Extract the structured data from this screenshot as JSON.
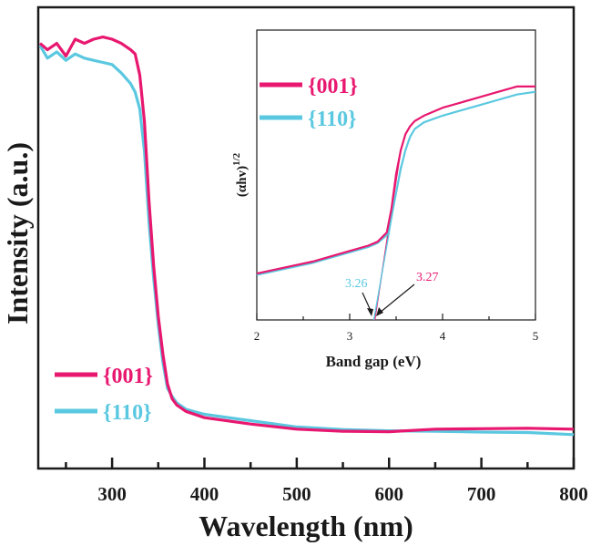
{
  "colors": {
    "s001": "#e8176f",
    "s110": "#5ac8e0",
    "axis": "#1a1a1a"
  },
  "chart_data": [
    {
      "type": "line",
      "title": "",
      "xlabel": "Wavelength (nm)",
      "ylabel": "Intensity (a.u.)",
      "xlim": [
        220,
        800
      ],
      "ylim": [
        0,
        1
      ],
      "xticks": [
        300,
        400,
        500,
        600,
        700,
        800
      ],
      "grid": false,
      "legend_position": "bottom-left",
      "series": [
        {
          "name": "{001}",
          "color": "#e8176f",
          "x": [
            222,
            230,
            240,
            250,
            260,
            270,
            280,
            290,
            300,
            310,
            320,
            325,
            330,
            335,
            340,
            345,
            350,
            355,
            360,
            365,
            370,
            380,
            400,
            450,
            500,
            550,
            600,
            650,
            700,
            750,
            800
          ],
          "y": [
            0.975,
            0.96,
            0.975,
            0.945,
            0.985,
            0.975,
            0.985,
            0.99,
            0.985,
            0.975,
            0.96,
            0.95,
            0.9,
            0.79,
            0.6,
            0.45,
            0.33,
            0.24,
            0.17,
            0.135,
            0.12,
            0.105,
            0.09,
            0.075,
            0.063,
            0.058,
            0.057,
            0.063,
            0.064,
            0.065,
            0.063
          ]
        },
        {
          "name": "{110}",
          "color": "#5ac8e0",
          "x": [
            222,
            230,
            240,
            250,
            260,
            270,
            280,
            290,
            300,
            310,
            320,
            325,
            330,
            335,
            340,
            345,
            350,
            355,
            360,
            365,
            370,
            380,
            400,
            450,
            500,
            550,
            600,
            650,
            700,
            750,
            800
          ],
          "y": [
            0.97,
            0.94,
            0.955,
            0.935,
            0.95,
            0.94,
            0.935,
            0.93,
            0.925,
            0.905,
            0.88,
            0.86,
            0.82,
            0.72,
            0.55,
            0.42,
            0.31,
            0.22,
            0.16,
            0.14,
            0.125,
            0.11,
            0.098,
            0.083,
            0.068,
            0.062,
            0.059,
            0.058,
            0.056,
            0.055,
            0.05
          ]
        }
      ]
    },
    {
      "type": "line",
      "title": "",
      "xlabel": "Band gap (eV)",
      "ylabel": "(αhv)",
      "ylabel_superscript": "1/2",
      "xlim": [
        2,
        5
      ],
      "ylim": [
        0,
        1
      ],
      "xticks": [
        2,
        3,
        4,
        5
      ],
      "grid": false,
      "legend_position": "top-left",
      "series": [
        {
          "name": "{001}",
          "color": "#e8176f",
          "x": [
            2.0,
            2.2,
            2.4,
            2.6,
            2.8,
            3.0,
            3.2,
            3.3,
            3.4,
            3.45,
            3.5,
            3.55,
            3.6,
            3.65,
            3.7,
            3.8,
            4.0,
            4.2,
            4.4,
            4.6,
            4.8,
            5.0
          ],
          "y": [
            0.175,
            0.19,
            0.205,
            0.22,
            0.24,
            0.26,
            0.28,
            0.295,
            0.33,
            0.42,
            0.55,
            0.64,
            0.7,
            0.73,
            0.75,
            0.77,
            0.8,
            0.82,
            0.84,
            0.86,
            0.88,
            0.88
          ]
        },
        {
          "name": "{110}",
          "color": "#5ac8e0",
          "x": [
            2.0,
            2.2,
            2.4,
            2.6,
            2.8,
            3.0,
            3.2,
            3.3,
            3.4,
            3.45,
            3.5,
            3.55,
            3.6,
            3.65,
            3.7,
            3.8,
            4.0,
            4.2,
            4.4,
            4.6,
            4.8,
            5.0
          ],
          "y": [
            0.17,
            0.185,
            0.2,
            0.215,
            0.235,
            0.255,
            0.275,
            0.29,
            0.32,
            0.39,
            0.48,
            0.57,
            0.64,
            0.69,
            0.72,
            0.745,
            0.77,
            0.79,
            0.81,
            0.83,
            0.85,
            0.86
          ]
        }
      ],
      "tangents": [
        {
          "name": "{001}",
          "x0": 3.27,
          "y0": 0.0,
          "x1": 3.55,
          "y1": 0.64
        },
        {
          "name": "{110}",
          "x0": 3.26,
          "y0": 0.0,
          "x1": 3.55,
          "y1": 0.58
        }
      ],
      "annotations": [
        {
          "text": "3.26",
          "series": "{110}",
          "x": 3.26
        },
        {
          "text": "3.27",
          "series": "{001}",
          "x": 3.27
        }
      ]
    }
  ]
}
